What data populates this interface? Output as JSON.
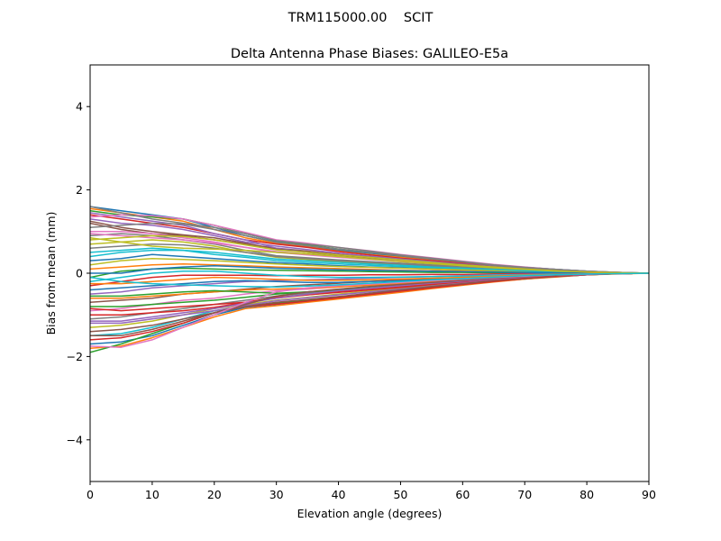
{
  "chart_data": {
    "type": "line",
    "suptitle": "TRM115000.00    SCIT",
    "title": "Delta Antenna Phase Biases: GALILEO-E5a",
    "xlabel": "Elevation angle (degrees)",
    "ylabel": "Bias from mean (mm)",
    "xlim": [
      0,
      90
    ],
    "ylim": [
      -5,
      5
    ],
    "xticks": [
      0,
      10,
      20,
      30,
      40,
      50,
      60,
      70,
      80,
      90
    ],
    "yticks": [
      -4,
      -2,
      0,
      2,
      4
    ],
    "grid": false,
    "legend": "none",
    "x": [
      0,
      5,
      10,
      15,
      20,
      25,
      30,
      35,
      40,
      45,
      50,
      55,
      60,
      65,
      70,
      75,
      80,
      85,
      90
    ],
    "colors": [
      "#1f77b4",
      "#ff7f0e",
      "#2ca02c",
      "#d62728",
      "#9467bd",
      "#8c564b",
      "#e377c2",
      "#7f7f7f",
      "#bcbd22",
      "#17becf"
    ],
    "series": [
      {
        "values": [
          1.6,
          1.5,
          1.4,
          1.3,
          1.1,
          0.9,
          0.75,
          0.65,
          0.55,
          0.48,
          0.4,
          0.33,
          0.27,
          0.2,
          0.14,
          0.09,
          0.05,
          0.02,
          0
        ]
      },
      {
        "values": [
          1.55,
          1.45,
          1.35,
          1.25,
          1.05,
          0.85,
          0.72,
          0.63,
          0.53,
          0.45,
          0.38,
          0.31,
          0.25,
          0.18,
          0.13,
          0.08,
          0.04,
          0.02,
          0
        ]
      },
      {
        "values": [
          1.5,
          1.4,
          1.35,
          1.3,
          1.15,
          0.95,
          0.78,
          0.68,
          0.58,
          0.5,
          0.42,
          0.35,
          0.28,
          0.2,
          0.14,
          0.09,
          0.05,
          0.02,
          0
        ]
      },
      {
        "values": [
          1.4,
          1.3,
          1.2,
          1.1,
          0.95,
          0.8,
          0.7,
          0.62,
          0.52,
          0.44,
          0.36,
          0.3,
          0.24,
          0.17,
          0.12,
          0.07,
          0.04,
          0.01,
          0
        ]
      },
      {
        "values": [
          1.3,
          1.2,
          1.15,
          1.05,
          0.9,
          0.75,
          0.65,
          0.57,
          0.48,
          0.41,
          0.34,
          0.28,
          0.22,
          0.16,
          0.11,
          0.07,
          0.04,
          0.01,
          0
        ]
      },
      {
        "values": [
          1.2,
          1.05,
          0.95,
          0.9,
          0.8,
          0.7,
          0.6,
          0.53,
          0.45,
          0.38,
          0.32,
          0.26,
          0.21,
          0.15,
          0.1,
          0.06,
          0.03,
          0.01,
          0
        ]
      },
      {
        "values": [
          1.0,
          1.0,
          0.95,
          0.85,
          0.75,
          0.62,
          0.5,
          0.44,
          0.38,
          0.33,
          0.28,
          0.23,
          0.18,
          0.13,
          0.09,
          0.05,
          0.03,
          0.01,
          0
        ]
      },
      {
        "values": [
          0.9,
          0.95,
          0.9,
          0.8,
          0.7,
          0.55,
          0.42,
          0.37,
          0.32,
          0.28,
          0.24,
          0.2,
          0.16,
          0.12,
          0.08,
          0.05,
          0.02,
          0.01,
          0
        ]
      },
      {
        "values": [
          0.7,
          0.75,
          0.8,
          0.75,
          0.65,
          0.5,
          0.38,
          0.33,
          0.28,
          0.24,
          0.21,
          0.17,
          0.14,
          0.1,
          0.07,
          0.04,
          0.02,
          0.01,
          0
        ]
      },
      {
        "values": [
          0.5,
          0.55,
          0.6,
          0.55,
          0.45,
          0.38,
          0.3,
          0.26,
          0.22,
          0.19,
          0.16,
          0.13,
          0.1,
          0.07,
          0.05,
          0.03,
          0.02,
          0.01,
          0
        ]
      },
      {
        "values": [
          0.3,
          0.35,
          0.45,
          0.4,
          0.35,
          0.3,
          0.25,
          0.22,
          0.18,
          0.15,
          0.13,
          0.1,
          0.08,
          0.06,
          0.04,
          0.02,
          0.01,
          0,
          0
        ]
      },
      {
        "values": [
          0.1,
          0.15,
          0.2,
          0.22,
          0.2,
          0.18,
          0.15,
          0.13,
          0.11,
          0.09,
          0.07,
          0.06,
          0.05,
          0.03,
          0.02,
          0.01,
          0.01,
          0,
          0
        ]
      },
      {
        "values": [
          -0.1,
          0.05,
          0.1,
          0.12,
          0.1,
          0.08,
          0.07,
          0.06,
          0.05,
          0.04,
          0.03,
          0.02,
          0.02,
          0.01,
          0.01,
          0,
          0,
          0,
          0
        ]
      },
      {
        "values": [
          -0.3,
          -0.2,
          -0.1,
          -0.05,
          -0.05,
          -0.05,
          -0.06,
          -0.05,
          -0.05,
          -0.04,
          -0.04,
          -0.03,
          -0.03,
          -0.02,
          -0.01,
          -0.01,
          0,
          0,
          0
        ]
      },
      {
        "values": [
          -0.5,
          -0.45,
          -0.35,
          -0.3,
          -0.25,
          -0.2,
          -0.18,
          -0.16,
          -0.14,
          -0.12,
          -0.1,
          -0.08,
          -0.06,
          -0.04,
          -0.03,
          -0.02,
          -0.01,
          0,
          0
        ]
      },
      {
        "values": [
          -0.7,
          -0.65,
          -0.6,
          -0.5,
          -0.45,
          -0.38,
          -0.32,
          -0.28,
          -0.24,
          -0.2,
          -0.16,
          -0.13,
          -0.1,
          -0.07,
          -0.05,
          -0.03,
          -0.01,
          0,
          0
        ]
      },
      {
        "values": [
          -0.9,
          -0.85,
          -0.75,
          -0.65,
          -0.6,
          -0.5,
          -0.42,
          -0.38,
          -0.33,
          -0.28,
          -0.23,
          -0.18,
          -0.14,
          -0.1,
          -0.07,
          -0.04,
          -0.02,
          -0.01,
          0
        ]
      },
      {
        "values": [
          -1.1,
          -1.05,
          -0.95,
          -0.85,
          -0.75,
          -0.65,
          -0.55,
          -0.48,
          -0.42,
          -0.36,
          -0.3,
          -0.24,
          -0.19,
          -0.14,
          -0.09,
          -0.05,
          -0.03,
          -0.01,
          0
        ]
      },
      {
        "values": [
          -1.3,
          -1.25,
          -1.15,
          -1.0,
          -0.85,
          -0.75,
          -0.65,
          -0.58,
          -0.5,
          -0.43,
          -0.36,
          -0.29,
          -0.23,
          -0.17,
          -0.11,
          -0.07,
          -0.03,
          -0.01,
          0
        ]
      },
      {
        "values": [
          -1.5,
          -1.45,
          -1.3,
          -1.1,
          -0.9,
          -0.8,
          -0.72,
          -0.65,
          -0.57,
          -0.49,
          -0.41,
          -0.33,
          -0.26,
          -0.19,
          -0.13,
          -0.08,
          -0.04,
          -0.01,
          0
        ]
      },
      {
        "values": [
          -1.7,
          -1.65,
          -1.5,
          -1.25,
          -1.0,
          -0.82,
          -0.75,
          -0.68,
          -0.6,
          -0.52,
          -0.44,
          -0.36,
          -0.28,
          -0.2,
          -0.14,
          -0.08,
          -0.04,
          -0.01,
          0
        ]
      },
      {
        "values": [
          -1.8,
          -1.75,
          -1.55,
          -1.3,
          -1.05,
          -0.85,
          -0.78,
          -0.7,
          -0.62,
          -0.54,
          -0.46,
          -0.37,
          -0.29,
          -0.21,
          -0.14,
          -0.09,
          -0.04,
          -0.02,
          0
        ]
      },
      {
        "values": [
          -1.9,
          -1.7,
          -1.45,
          -1.2,
          -0.95,
          -0.78,
          -0.72,
          -0.66,
          -0.58,
          -0.5,
          -0.42,
          -0.34,
          -0.27,
          -0.19,
          -0.13,
          -0.08,
          -0.04,
          -0.01,
          0
        ]
      },
      {
        "values": [
          -1.6,
          -1.55,
          -1.4,
          -1.2,
          -0.95,
          -0.8,
          -0.74,
          -0.67,
          -0.59,
          -0.51,
          -0.43,
          -0.35,
          -0.27,
          -0.2,
          -0.13,
          -0.08,
          -0.04,
          -0.01,
          0
        ]
      },
      {
        "values": [
          1.45,
          1.35,
          1.25,
          1.15,
          0.95,
          0.8,
          0.6,
          0.5,
          0.4,
          0.35,
          0.3,
          0.25,
          0.2,
          0.14,
          0.1,
          0.06,
          0.03,
          0.01,
          0
        ]
      },
      {
        "values": [
          1.25,
          1.1,
          1.0,
          0.92,
          0.85,
          0.72,
          0.58,
          0.5,
          0.43,
          0.37,
          0.31,
          0.25,
          0.2,
          0.14,
          0.1,
          0.06,
          0.03,
          0.01,
          0
        ]
      },
      {
        "values": [
          0.95,
          0.9,
          0.85,
          0.8,
          0.72,
          0.62,
          0.52,
          0.46,
          0.4,
          0.34,
          0.29,
          0.24,
          0.19,
          0.14,
          0.09,
          0.06,
          0.03,
          0.01,
          0
        ]
      },
      {
        "values": [
          0.6,
          0.65,
          0.7,
          0.68,
          0.6,
          0.5,
          0.4,
          0.35,
          0.3,
          0.26,
          0.22,
          0.18,
          0.14,
          0.1,
          0.07,
          0.04,
          0.02,
          0.01,
          0
        ]
      },
      {
        "values": [
          0.2,
          0.3,
          0.35,
          0.33,
          0.3,
          0.26,
          0.22,
          0.19,
          0.16,
          0.14,
          0.12,
          0.1,
          0.08,
          0.06,
          0.04,
          0.02,
          0.01,
          0,
          0
        ]
      },
      {
        "values": [
          -0.2,
          -0.1,
          0.0,
          0.05,
          0.05,
          0.0,
          -0.05,
          -0.08,
          -0.1,
          -0.1,
          -0.09,
          -0.08,
          -0.07,
          -0.05,
          -0.04,
          -0.02,
          -0.01,
          0,
          0
        ]
      },
      {
        "values": [
          -0.4,
          -0.35,
          -0.3,
          -0.25,
          -0.2,
          -0.18,
          -0.2,
          -0.22,
          -0.22,
          -0.2,
          -0.18,
          -0.15,
          -0.12,
          -0.09,
          -0.06,
          -0.04,
          -0.02,
          -0.01,
          0
        ]
      },
      {
        "values": [
          -0.6,
          -0.6,
          -0.55,
          -0.5,
          -0.45,
          -0.4,
          -0.38,
          -0.36,
          -0.33,
          -0.29,
          -0.25,
          -0.2,
          -0.16,
          -0.12,
          -0.08,
          -0.05,
          -0.02,
          -0.01,
          0
        ]
      },
      {
        "values": [
          -0.8,
          -0.8,
          -0.75,
          -0.7,
          -0.65,
          -0.58,
          -0.5,
          -0.45,
          -0.4,
          -0.35,
          -0.3,
          -0.24,
          -0.19,
          -0.14,
          -0.09,
          -0.05,
          -0.03,
          -0.01,
          0
        ]
      },
      {
        "values": [
          -1.0,
          -1.0,
          -0.95,
          -0.9,
          -0.82,
          -0.7,
          -0.58,
          -0.52,
          -0.46,
          -0.4,
          -0.34,
          -0.27,
          -0.21,
          -0.15,
          -0.1,
          -0.06,
          -0.03,
          -0.01,
          0
        ]
      },
      {
        "values": [
          -1.2,
          -1.2,
          -1.1,
          -1.0,
          -0.9,
          -0.78,
          -0.66,
          -0.59,
          -0.52,
          -0.45,
          -0.38,
          -0.31,
          -0.24,
          -0.17,
          -0.11,
          -0.07,
          -0.03,
          -0.01,
          0
        ]
      },
      {
        "values": [
          -1.4,
          -1.35,
          -1.25,
          -1.1,
          -0.95,
          -0.8,
          -0.7,
          -0.63,
          -0.56,
          -0.48,
          -0.4,
          -0.32,
          -0.25,
          -0.18,
          -0.12,
          -0.07,
          -0.03,
          -0.01,
          0
        ]
      },
      {
        "values": [
          1.35,
          1.4,
          1.38,
          1.3,
          1.15,
          0.98,
          0.8,
          0.72,
          0.62,
          0.54,
          0.45,
          0.37,
          0.29,
          0.21,
          0.15,
          0.09,
          0.05,
          0.02,
          0
        ]
      },
      {
        "values": [
          1.1,
          1.15,
          1.2,
          1.18,
          1.05,
          0.9,
          0.74,
          0.66,
          0.58,
          0.5,
          0.42,
          0.34,
          0.27,
          0.19,
          0.13,
          0.08,
          0.04,
          0.01,
          0
        ]
      },
      {
        "values": [
          0.8,
          0.85,
          0.9,
          0.88,
          0.8,
          0.68,
          0.56,
          0.5,
          0.44,
          0.38,
          0.32,
          0.26,
          0.2,
          0.15,
          0.1,
          0.06,
          0.03,
          0.01,
          0
        ]
      },
      {
        "values": [
          0.4,
          0.5,
          0.55,
          0.55,
          0.5,
          0.42,
          0.34,
          0.3,
          0.26,
          0.22,
          0.19,
          0.15,
          0.12,
          0.09,
          0.06,
          0.03,
          0.02,
          0.01,
          0
        ]
      },
      {
        "values": [
          0.0,
          0.0,
          0.1,
          0.15,
          0.18,
          0.15,
          0.12,
          0.1,
          0.08,
          0.07,
          0.06,
          0.05,
          0.04,
          0.03,
          0.02,
          0.01,
          0,
          0,
          0
        ]
      },
      {
        "values": [
          -0.25,
          -0.25,
          -0.2,
          -0.15,
          -0.1,
          -0.12,
          -0.15,
          -0.17,
          -0.17,
          -0.16,
          -0.14,
          -0.12,
          -0.1,
          -0.07,
          -0.05,
          -0.03,
          -0.01,
          0,
          0
        ]
      },
      {
        "values": [
          -0.55,
          -0.55,
          -0.5,
          -0.45,
          -0.42,
          -0.45,
          -0.48,
          -0.45,
          -0.4,
          -0.35,
          -0.29,
          -0.23,
          -0.18,
          -0.13,
          -0.09,
          -0.05,
          -0.02,
          -0.01,
          0
        ]
      },
      {
        "values": [
          -0.85,
          -0.9,
          -0.85,
          -0.8,
          -0.75,
          -0.7,
          -0.6,
          -0.52,
          -0.45,
          -0.39,
          -0.33,
          -0.26,
          -0.2,
          -0.15,
          -0.1,
          -0.06,
          -0.03,
          -0.01,
          0
        ]
      },
      {
        "values": [
          -1.15,
          -1.15,
          -1.05,
          -0.95,
          -0.85,
          -0.72,
          -0.6,
          -0.5,
          -0.42,
          -0.36,
          -0.3,
          -0.24,
          -0.19,
          -0.14,
          -0.09,
          -0.05,
          -0.03,
          -0.01,
          0
        ]
      },
      {
        "values": [
          -1.5,
          -1.5,
          -1.35,
          -1.15,
          -0.95,
          -0.75,
          -0.55,
          -0.45,
          -0.38,
          -0.32,
          -0.27,
          -0.22,
          -0.17,
          -0.12,
          -0.08,
          -0.05,
          -0.02,
          -0.01,
          0
        ]
      },
      {
        "values": [
          -1.75,
          -1.78,
          -1.6,
          -1.3,
          -1.0,
          -0.7,
          -0.45,
          -0.35,
          -0.3,
          -0.26,
          -0.22,
          -0.18,
          -0.14,
          -0.1,
          -0.07,
          -0.04,
          -0.02,
          -0.01,
          0
        ]
      },
      {
        "values": [
          1.6,
          1.45,
          1.3,
          1.2,
          1.1,
          0.95,
          0.78,
          0.7,
          0.62,
          0.53,
          0.44,
          0.36,
          0.28,
          0.2,
          0.14,
          0.09,
          0.05,
          0.02,
          0
        ]
      },
      {
        "values": [
          0.85,
          0.75,
          0.65,
          0.6,
          0.58,
          0.55,
          0.5,
          0.46,
          0.4,
          0.34,
          0.28,
          0.23,
          0.18,
          0.13,
          0.09,
          0.05,
          0.03,
          0.01,
          0
        ]
      },
      {
        "values": [
          -0.1,
          -0.2,
          -0.25,
          -0.28,
          -0.3,
          -0.32,
          -0.33,
          -0.31,
          -0.28,
          -0.24,
          -0.2,
          -0.16,
          -0.13,
          -0.09,
          -0.06,
          -0.04,
          -0.02,
          -0.01,
          0
        ]
      }
    ]
  }
}
